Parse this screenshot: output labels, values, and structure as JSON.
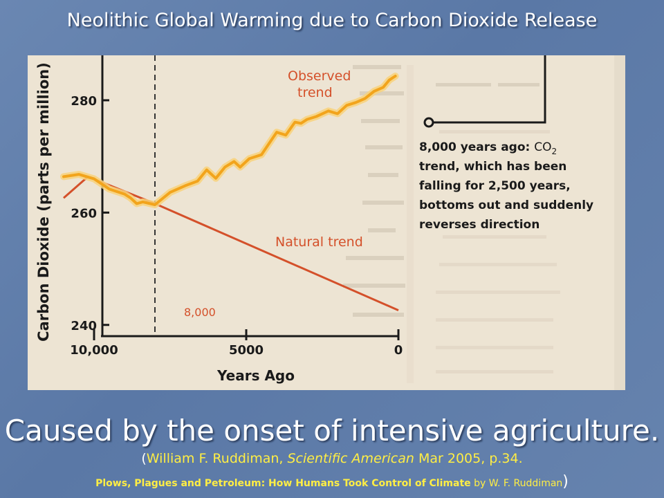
{
  "slide": {
    "title": "Neolithic Global Warming due to Carbon Dioxide Release",
    "caption": "Caused by the onset of intensive agriculture.",
    "citation": {
      "open": "(",
      "author": "William F. Ruddiman, ",
      "journal": "Scientific American",
      "rest": " Mar 2005, p.34."
    },
    "book": {
      "title": "Plows, Plagues and Petroleum: How Humans Took Control of Climate",
      "author": " by W. F. Ruddiman",
      "close": ")"
    }
  },
  "chart_data": {
    "type": "line",
    "xlabel": "Years Ago",
    "ylabel": "Carbon Dioxide (parts per million)",
    "xlim": [
      11500,
      0
    ],
    "ylim": [
      238,
      288
    ],
    "x_ticks": [
      10000,
      5000,
      0
    ],
    "x_tick_labels": [
      "10,000",
      "5000",
      "0"
    ],
    "y_ticks": [
      240,
      260,
      280
    ],
    "y_tick_labels": [
      "240",
      "260",
      "280"
    ],
    "grid": false,
    "series": [
      {
        "name": "Observed trend",
        "color": "#f5b62a",
        "x": [
          11000,
          10500,
          10000,
          9500,
          9000,
          8800,
          8600,
          8400,
          8000,
          7500,
          7000,
          6600,
          6300,
          6000,
          5700,
          5400,
          5200,
          4900,
          4500,
          4000,
          3700,
          3400,
          3200,
          3000,
          2700,
          2300,
          2000,
          1700,
          1400,
          1100,
          800,
          500,
          300,
          100
        ],
        "y": [
          266.4,
          266.8,
          266,
          264.2,
          263.3,
          262.6,
          261.6,
          261.9,
          261.4,
          263.6,
          264.8,
          265.6,
          267.6,
          266.1,
          268.1,
          269.1,
          268.1,
          269.6,
          270.3,
          274.3,
          273.8,
          276.1,
          275.9,
          276.6,
          277.1,
          278.1,
          277.6,
          279.1,
          279.6,
          280.3,
          281.6,
          282.3,
          283.6,
          284.3
        ]
      },
      {
        "name": "Natural trend",
        "color": "#d4502a",
        "x": [
          11000,
          10200,
          8000,
          0
        ],
        "y": [
          262.6,
          266.4,
          261.6,
          242.6
        ]
      }
    ],
    "annotations": [
      {
        "text": "8,000",
        "x": 8000,
        "y": 242
      },
      {
        "text": "8,000 years ago: CO2 trend, which has been falling for 2,500 years, bottoms out and suddenly reverses direction"
      }
    ],
    "vertical_line": {
      "x": 8000,
      "style": "dashed"
    }
  },
  "labels": {
    "observed_line1": "Observed",
    "observed_line2": "trend",
    "natural": "Natural trend",
    "marker_8000": "8,000",
    "callout_lead": "8,000 years ago: ",
    "callout_co": "CO",
    "callout_sub": "2",
    "callout_lines": [
      "trend, which has been",
      "falling for 2,500 years,",
      "bottoms out and suddenly",
      "reverses direction"
    ]
  }
}
